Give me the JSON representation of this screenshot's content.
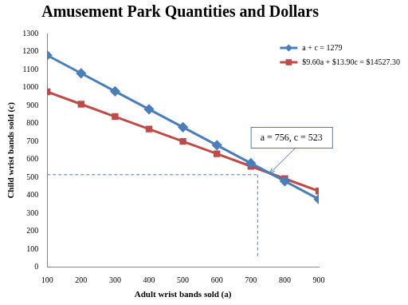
{
  "chart_data": {
    "type": "line",
    "title": "Amusement Park Quantities and Dollars",
    "x_label": "Adult wrist bands sold (a)",
    "y_label": "Child wrist bands sold (c)",
    "x": [
      100,
      200,
      300,
      400,
      500,
      600,
      700,
      800,
      900
    ],
    "series": [
      {
        "name": "a + c = 1279",
        "color": "#4a7ebb",
        "marker": "diamond",
        "values": [
          1179,
          1079,
          979,
          879,
          779,
          679,
          579,
          479,
          379
        ]
      },
      {
        "name": "$9.60a + $13.90c = $14527.30",
        "color": "#be4b48",
        "marker": "square",
        "values": [
          976,
          907,
          838,
          769,
          700,
          631,
          562,
          493,
          424
        ]
      }
    ],
    "xlim": [
      100,
      900
    ],
    "xticks": [
      100,
      200,
      300,
      400,
      500,
      600,
      700,
      800,
      900
    ],
    "ylim": [
      0,
      1300
    ],
    "yticks": [
      0,
      100,
      200,
      300,
      400,
      500,
      600,
      700,
      800,
      900,
      1000,
      1100,
      1200,
      1300
    ],
    "grid": false,
    "legend": "upper right",
    "annotations": [
      {
        "text": "a = 756, c = 523",
        "x": 756,
        "y": 523
      }
    ],
    "reference_lines": {
      "x": 720,
      "y": 515,
      "y_start": 55,
      "color": "#4a7ebb",
      "line_style": "dashed"
    }
  }
}
